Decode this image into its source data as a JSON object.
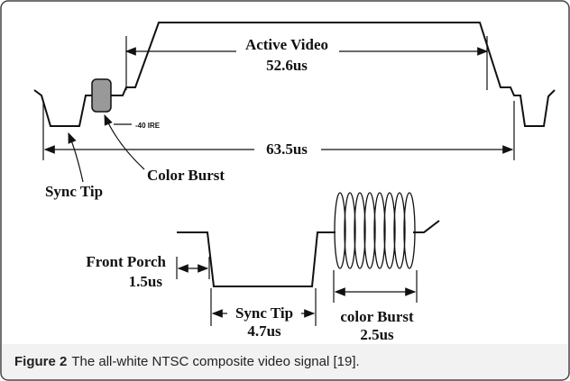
{
  "figure": {
    "top": {
      "active_video": "Active Video",
      "active_duration": "52.6us",
      "ire": "-40 IRE",
      "line_duration": "63.5us",
      "sync_tip": "Sync Tip",
      "color_burst": "Color Burst"
    },
    "bottom": {
      "front_porch": "Front Porch",
      "front_porch_duration": "1.5us",
      "sync_tip": "Sync Tip",
      "sync_tip_duration": "4.7us",
      "color_burst": "color Burst",
      "color_burst_duration": "2.5us"
    }
  },
  "caption": {
    "label": "Figure 2",
    "text": "The all-white NTSC composite video signal [19]."
  }
}
